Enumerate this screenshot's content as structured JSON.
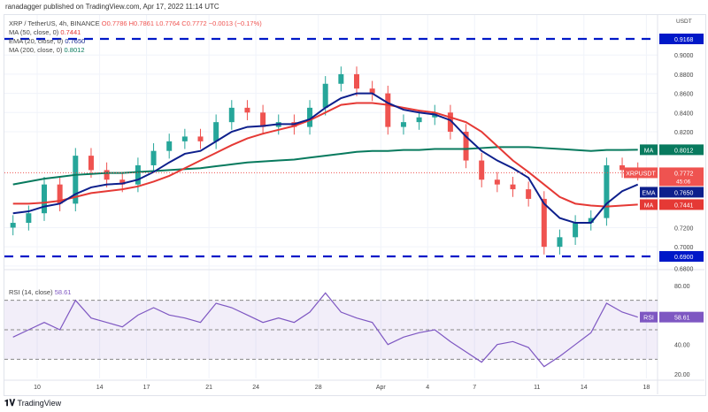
{
  "header": "ranadagger published on TradingView.com, Apr 17, 2022 11:14 UTC",
  "legend": {
    "symbol": "XRP / TetherUS, 4h, BINANCE",
    "ohlc": "O0.7786 H0.7861 L0.7764 C0.7772 −0.0013 (−0.17%)",
    "ma50": {
      "label": "MA (50, close, 0)",
      "value": "0.7441"
    },
    "ema20": {
      "label": "EMA (20, close, 0)",
      "value": "0.7650"
    },
    "ma200": {
      "label": "MA (200, close, 0)",
      "value": "0.8012"
    },
    "rsi": {
      "label": "RSI (14, close)",
      "value": "58.61"
    }
  },
  "colors": {
    "up": "#26a69a",
    "down": "#ef5350",
    "ma50": "#e53935",
    "ema20": "#0d1f8c",
    "ma200": "#087a5e",
    "level": "#0018c8",
    "rsi": "#7e57c2"
  },
  "footer": "TradingView",
  "chart_data": {
    "type": "candlestick",
    "currency": "USDT",
    "x": [
      "Mar 8",
      "Mar 9",
      "Mar 10",
      "Mar 11",
      "Mar 12",
      "Mar 13",
      "Mar 14",
      "Mar 15",
      "Mar 16",
      "Mar 17",
      "Mar 18",
      "Mar 19",
      "Mar 20",
      "Mar 21",
      "Mar 22",
      "Mar 23",
      "Mar 24",
      "Mar 25",
      "Mar 26",
      "Mar 27",
      "Mar 28",
      "Mar 29",
      "Mar 30",
      "Mar 31",
      "Apr 1",
      "Apr 2",
      "Apr 3",
      "Apr 4",
      "Apr 5",
      "Apr 6",
      "Apr 7",
      "Apr 8",
      "Apr 9",
      "Apr 10",
      "Apr 11",
      "Apr 12",
      "Apr 13",
      "Apr 14",
      "Apr 15",
      "Apr 16",
      "Apr 17"
    ],
    "close": [
      0.725,
      0.735,
      0.765,
      0.745,
      0.795,
      0.78,
      0.77,
      0.765,
      0.785,
      0.8,
      0.81,
      0.815,
      0.81,
      0.83,
      0.845,
      0.84,
      0.825,
      0.83,
      0.825,
      0.845,
      0.87,
      0.88,
      0.865,
      0.86,
      0.825,
      0.83,
      0.835,
      0.84,
      0.82,
      0.79,
      0.77,
      0.765,
      0.76,
      0.75,
      0.7,
      0.71,
      0.725,
      0.73,
      0.785,
      0.78,
      0.7772
    ],
    "ema20": [
      0.735,
      0.737,
      0.742,
      0.745,
      0.755,
      0.762,
      0.765,
      0.766,
      0.77,
      0.778,
      0.788,
      0.797,
      0.8,
      0.81,
      0.82,
      0.825,
      0.826,
      0.828,
      0.828,
      0.833,
      0.845,
      0.855,
      0.86,
      0.86,
      0.85,
      0.843,
      0.84,
      0.838,
      0.832,
      0.815,
      0.8,
      0.79,
      0.782,
      0.772,
      0.745,
      0.73,
      0.725,
      0.725,
      0.745,
      0.758,
      0.765
    ],
    "ma50": [
      0.745,
      0.745,
      0.746,
      0.748,
      0.752,
      0.756,
      0.758,
      0.76,
      0.763,
      0.768,
      0.774,
      0.782,
      0.79,
      0.798,
      0.806,
      0.813,
      0.818,
      0.822,
      0.826,
      0.832,
      0.84,
      0.848,
      0.85,
      0.85,
      0.848,
      0.845,
      0.842,
      0.84,
      0.835,
      0.83,
      0.82,
      0.805,
      0.79,
      0.778,
      0.765,
      0.752,
      0.745,
      0.743,
      0.742,
      0.743,
      0.7441
    ],
    "ma200": [
      0.765,
      0.768,
      0.771,
      0.773,
      0.775,
      0.776,
      0.777,
      0.777,
      0.778,
      0.779,
      0.78,
      0.781,
      0.782,
      0.784,
      0.786,
      0.788,
      0.789,
      0.79,
      0.791,
      0.793,
      0.795,
      0.797,
      0.799,
      0.8,
      0.8,
      0.801,
      0.801,
      0.802,
      0.802,
      0.802,
      0.803,
      0.804,
      0.804,
      0.804,
      0.803,
      0.802,
      0.801,
      0.8,
      0.801,
      0.801,
      0.8012
    ],
    "rsi": [
      45,
      50,
      55,
      50,
      70,
      58,
      55,
      52,
      60,
      65,
      60,
      58,
      55,
      68,
      65,
      60,
      55,
      58,
      55,
      62,
      75,
      62,
      58,
      55,
      40,
      45,
      48,
      50,
      42,
      35,
      28,
      40,
      42,
      38,
      25,
      32,
      40,
      48,
      68,
      62,
      58.61
    ],
    "levels": [
      0.9168,
      0.69
    ],
    "price_ticks": [
      "0.9000",
      "0.8800",
      "0.8600",
      "0.8400",
      "0.8200",
      "0.7200",
      "0.7000",
      "0.6800"
    ],
    "rsi_ticks": [
      "80.00",
      "40.00",
      "20.00"
    ],
    "rsi_bands": [
      70,
      50,
      30
    ],
    "time_ticks": [
      [
        "10",
        "Mar 10"
      ],
      [
        "14",
        "Mar 14"
      ],
      [
        "17",
        "Mar 17"
      ],
      [
        "21",
        "Mar 21"
      ],
      [
        "24",
        "Mar 24"
      ],
      [
        "28",
        "Mar 28"
      ],
      [
        "Apr",
        "Apr 1"
      ],
      [
        "4",
        "Apr 4"
      ],
      [
        "7",
        "Apr 7"
      ],
      [
        "11",
        "Apr 11"
      ],
      [
        "14",
        "Apr 14"
      ],
      [
        "18",
        "Apr 18"
      ]
    ],
    "labels": {
      "level_top": "0.9168",
      "level_bottom": "0.6900",
      "ma200": {
        "tag": "MA",
        "value": "0.8012"
      },
      "last": {
        "tag": "XRPUSDT",
        "value": "0.7772",
        "countdown": "45:06"
      },
      "ema": {
        "tag": "EMA",
        "value": "0.7650"
      },
      "ma50": {
        "tag": "MA",
        "value": "0.7441"
      },
      "rsi": {
        "tag": "RSI",
        "value": "58.61"
      }
    }
  }
}
